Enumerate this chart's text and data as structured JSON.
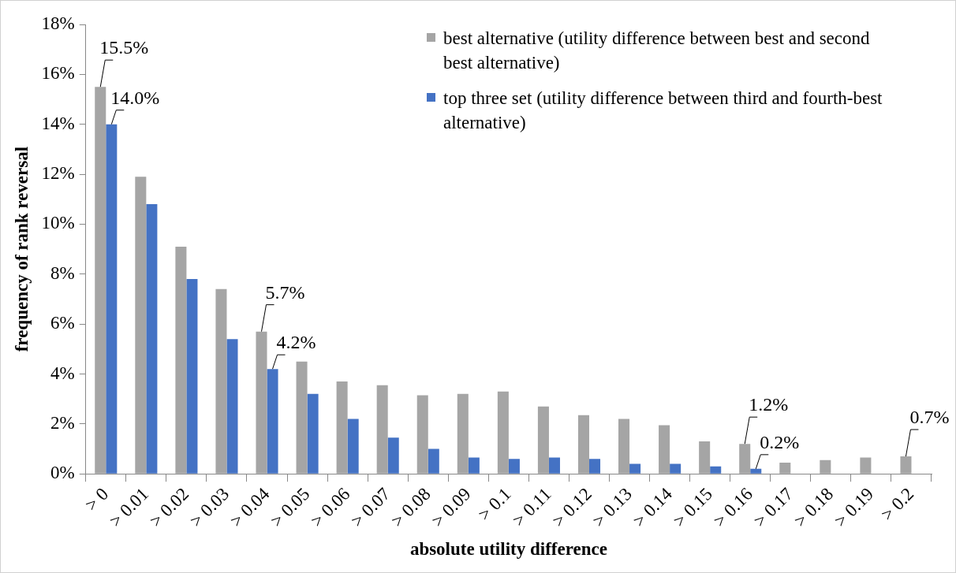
{
  "chart_data": {
    "type": "bar",
    "xlabel": "absolute utility difference",
    "ylabel": "frequency of rank reversal",
    "categories": [
      "> 0",
      "> 0.01",
      "> 0.02",
      "> 0.03",
      "> 0.04",
      "> 0.05",
      "> 0.06",
      "> 0.07",
      "> 0.08",
      "> 0.09",
      "> 0.1",
      "> 0.11",
      "> 0.12",
      "> 0.13",
      "> 0.14",
      "> 0.15",
      "> 0.16",
      "> 0.17",
      "> 0.18",
      "> 0.19",
      "> 0.2"
    ],
    "series": [
      {
        "name": "best alternative (utility difference between best and second best alternative)",
        "color": "#a5a5a5",
        "values": [
          15.5,
          11.9,
          9.1,
          7.4,
          5.7,
          4.5,
          3.7,
          3.55,
          3.15,
          3.2,
          3.3,
          2.7,
          2.35,
          2.2,
          1.95,
          1.3,
          1.2,
          0.45,
          0.55,
          0.65,
          0.7
        ],
        "value_labels": [
          "15.5%",
          null,
          null,
          null,
          "5.7%",
          null,
          null,
          null,
          null,
          null,
          null,
          null,
          null,
          null,
          null,
          null,
          "1.2%",
          null,
          null,
          null,
          "0.7%"
        ]
      },
      {
        "name": "top three set (utility difference between third and fourth-best alternative)",
        "color": "#4472c4",
        "values": [
          14.0,
          10.8,
          7.8,
          5.4,
          4.2,
          3.2,
          2.2,
          1.45,
          1.0,
          0.65,
          0.6,
          0.65,
          0.6,
          0.4,
          0.4,
          0.3,
          0.2,
          null,
          null,
          null,
          null
        ],
        "value_labels": [
          "14.0%",
          null,
          null,
          null,
          "4.2%",
          null,
          null,
          null,
          null,
          null,
          null,
          null,
          null,
          null,
          null,
          null,
          "0.2%",
          null,
          null,
          null,
          null
        ]
      }
    ],
    "ylim": [
      0,
      18
    ],
    "yticks": [
      {
        "value": 0,
        "label": "0%"
      },
      {
        "value": 2,
        "label": "2%"
      },
      {
        "value": 4,
        "label": "4%"
      },
      {
        "value": 6,
        "label": "6%"
      },
      {
        "value": 8,
        "label": "8%"
      },
      {
        "value": 10,
        "label": "10%"
      },
      {
        "value": 12,
        "label": "12%"
      },
      {
        "value": 14,
        "label": "14%"
      },
      {
        "value": 16,
        "label": "16%"
      },
      {
        "value": 18,
        "label": "18%"
      }
    ],
    "grid": false,
    "legend": "top right"
  }
}
